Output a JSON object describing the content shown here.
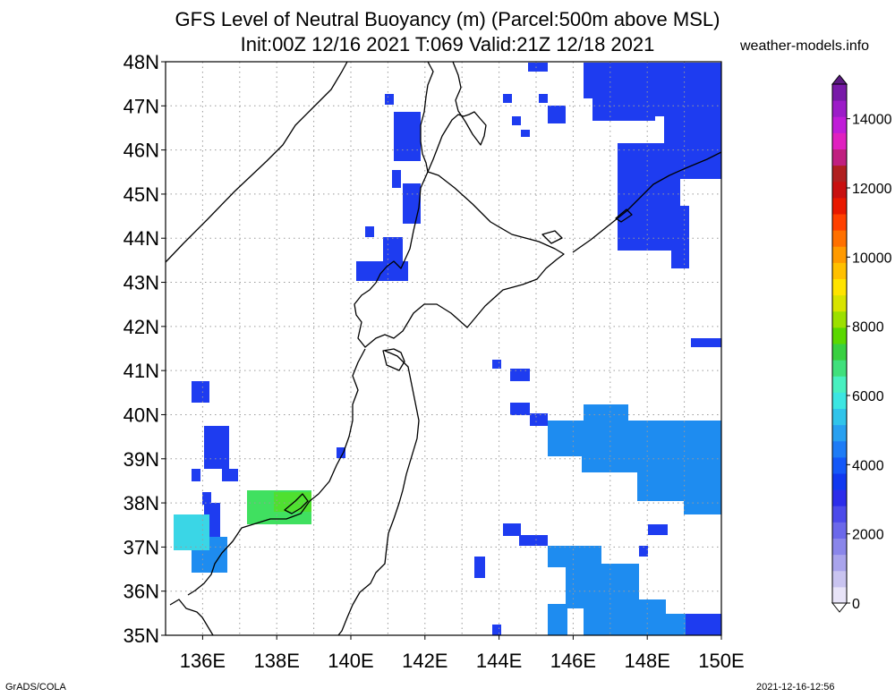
{
  "title": {
    "line1": "GFS Level of Neutral Buoyancy (m) (Parcel:500m above MSL)",
    "line2": "Init:00Z 12/16 2021 T:069 Valid:21Z 12/18 2021"
  },
  "site": "weather-models.info",
  "footer": {
    "left": "GrADS/COLA",
    "right": "2021-12-16-12:56"
  },
  "map": {
    "lon_range": [
      135,
      150
    ],
    "lat_range": [
      35,
      48
    ],
    "lat_labels": [
      "35N",
      "36N",
      "37N",
      "38N",
      "39N",
      "40N",
      "41N",
      "42N",
      "43N",
      "44N",
      "45N",
      "46N",
      "47N",
      "48N"
    ],
    "lon_labels": [
      "136E",
      "138E",
      "140E",
      "142E",
      "144E",
      "146E",
      "148E",
      "150E"
    ],
    "grid": true
  },
  "colorbar": {
    "labels": [
      "0",
      "2000",
      "4000",
      "6000",
      "8000",
      "10000",
      "12000",
      "14000"
    ],
    "max": 15000,
    "colors": [
      "#e8e4f8",
      "#c9c4f0",
      "#a9a4ec",
      "#8a86ea",
      "#6b68ea",
      "#4c4aea",
      "#2c2cea",
      "#1038f0",
      "#1458f8",
      "#1e7cf6",
      "#28a0f0",
      "#30c4ea",
      "#3ce6e2",
      "#48f0c0",
      "#40e07c",
      "#38d040",
      "#5ad800",
      "#9ce000",
      "#d8e400",
      "#ffe400",
      "#ffc000",
      "#ff9a00",
      "#ff7000",
      "#ff4000",
      "#e81800",
      "#c81010",
      "#b02020",
      "#c02080",
      "#e020c0",
      "#c01cd8",
      "#9c1cc8",
      "#781aa8"
    ]
  },
  "field_colors": {
    "blue": "#1e3cf0",
    "light_blue": "#1e8cf0",
    "cyan": "#3ad6e6",
    "green": "#40e060",
    "yellow_green": "#4fe030"
  }
}
